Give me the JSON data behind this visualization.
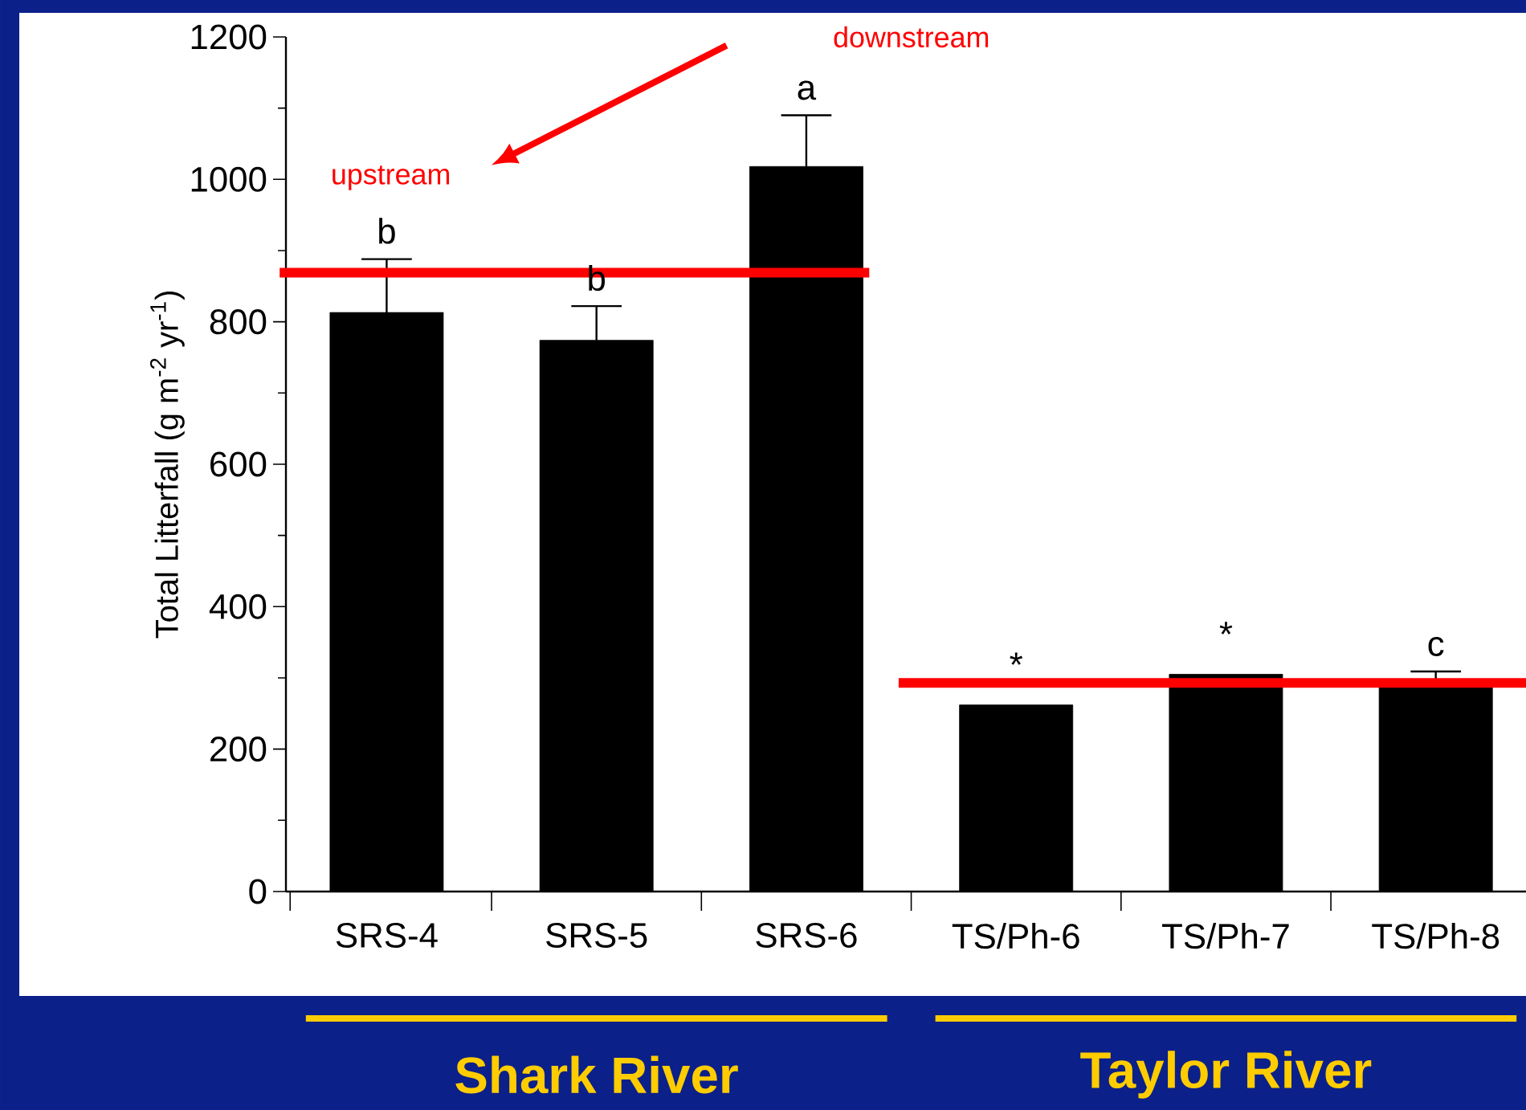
{
  "chart_data": {
    "type": "bar",
    "ylabel": "Total Litterfall (g m$^{-2}$ yr$^{-1}$)",
    "categories": [
      "SRS-4",
      "SRS-5",
      "SRS-6",
      "TS/Ph-6",
      "TS/Ph-7",
      "TS/Ph-8"
    ],
    "values": [
      813,
      774,
      1018,
      262,
      305,
      290
    ],
    "errors": [
      [
        813,
        888
      ],
      [
        774,
        822
      ],
      [
        1018,
        1090
      ],
      null,
      null,
      [
        290,
        309
      ]
    ],
    "color": "#000000",
    "ylim": [
      0,
      1200
    ],
    "yticks": [
      0,
      200,
      400,
      600,
      800,
      1000,
      1200
    ],
    "grid": false,
    "ref_lines": [
      {
        "axis": "y",
        "value": 869,
        "color": "#ff0000"
      },
      {
        "axis": "y",
        "value": 293,
        "color": "#ff0000"
      }
    ],
    "annotations": [
      "downstream",
      "upstream",
      "Shark River",
      "Taylor River",
      "b",
      "b",
      "a",
      "*",
      "*",
      "c"
    ]
  }
}
